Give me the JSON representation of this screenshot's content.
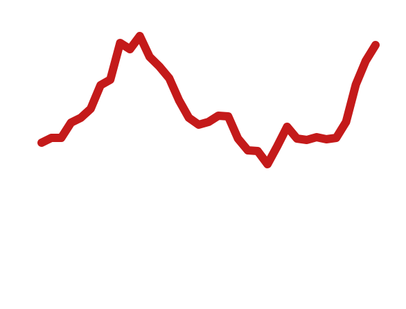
{
  "chart_data": {
    "type": "line",
    "categories": [
      null,
      null,
      null,
      null,
      null,
      null,
      null,
      null,
      null,
      null,
      null,
      null,
      null,
      null,
      null,
      null,
      null,
      null,
      null,
      null,
      null,
      null,
      null,
      null,
      null,
      null,
      null,
      null,
      null,
      null,
      null,
      null,
      null,
      null,
      null
    ],
    "series": [
      {
        "color": "#c41a1a",
        "values": [
          240,
          247,
          247,
          269,
          276,
          289,
          323,
          331,
          384,
          375,
          394,
          364,
          350,
          333,
          301,
          276,
          266,
          270,
          279,
          278,
          246,
          229,
          228,
          209,
          235,
          263,
          246,
          244,
          248,
          245,
          247,
          270,
          324,
          358,
          381
        ]
      }
    ],
    "ylim": [
      0,
      446
    ]
  }
}
